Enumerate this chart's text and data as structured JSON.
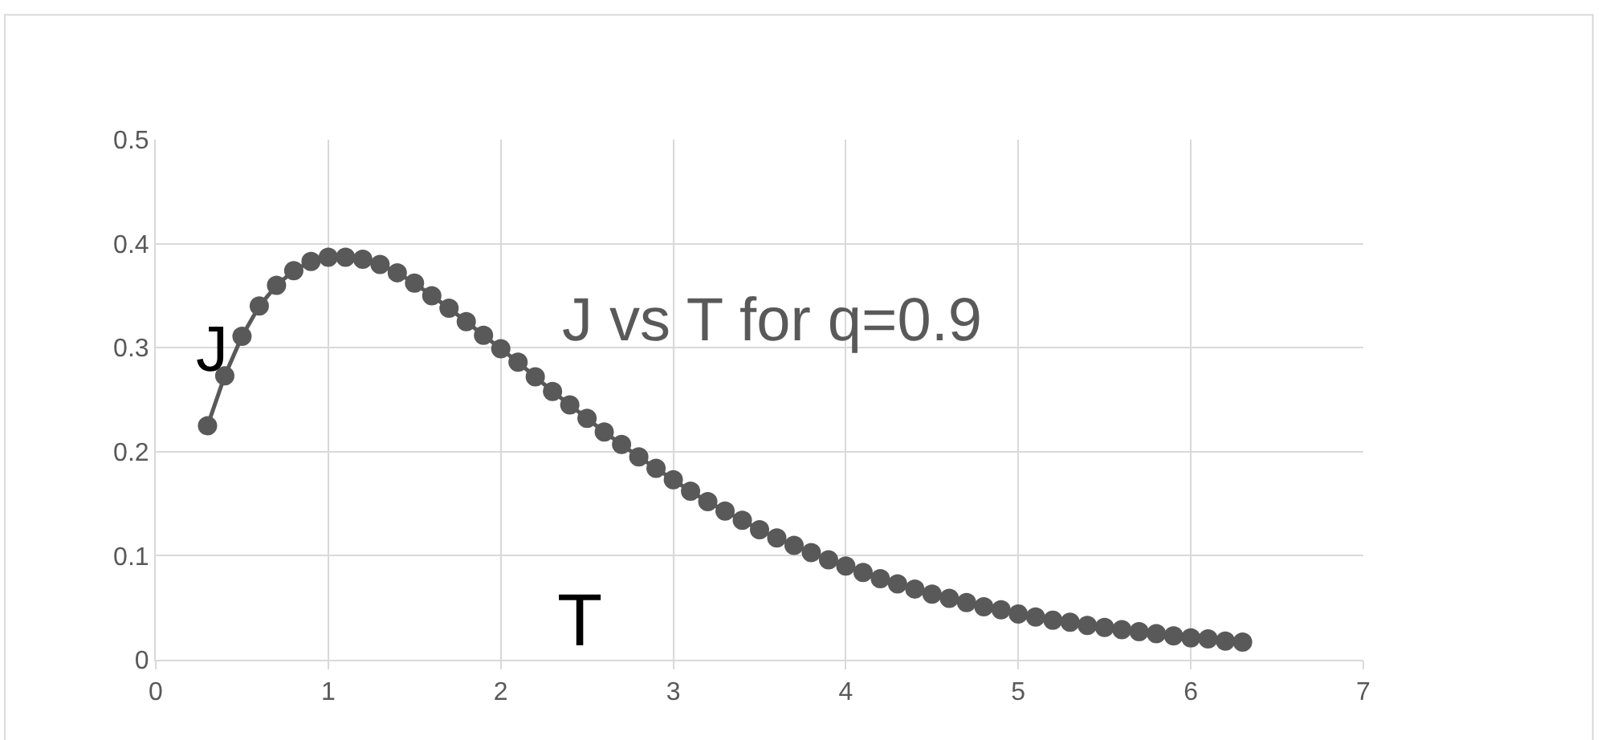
{
  "chart_data": {
    "type": "line",
    "title": "J vs T for q=0.9",
    "xlabel": "T",
    "ylabel": "J",
    "x": [
      0.3,
      0.4,
      0.5,
      0.6,
      0.7,
      0.8,
      0.9,
      1.0,
      1.1,
      1.2,
      1.3,
      1.4,
      1.5,
      1.6,
      1.7,
      1.8,
      1.9,
      2.0,
      2.1,
      2.2,
      2.3,
      2.4,
      2.5,
      2.6,
      2.7,
      2.8,
      2.9,
      3.0,
      3.1,
      3.2,
      3.3,
      3.4,
      3.5,
      3.6,
      3.7,
      3.8,
      3.9,
      4.0,
      4.1,
      4.2,
      4.3,
      4.4,
      4.5,
      4.6,
      4.7,
      4.8,
      4.9,
      5.0,
      5.1,
      5.2,
      5.3,
      5.4,
      5.5,
      5.6,
      5.7,
      5.8,
      5.9,
      6.0,
      6.1,
      6.2,
      6.3
    ],
    "series": [
      {
        "color": "#595959",
        "values": [
          0.225,
          0.273,
          0.311,
          0.34,
          0.36,
          0.374,
          0.383,
          0.387,
          0.387,
          0.385,
          0.38,
          0.372,
          0.362,
          0.35,
          0.338,
          0.325,
          0.312,
          0.299,
          0.286,
          0.272,
          0.258,
          0.245,
          0.232,
          0.219,
          0.207,
          0.195,
          0.184,
          0.173,
          0.162,
          0.152,
          0.143,
          0.134,
          0.125,
          0.117,
          0.11,
          0.103,
          0.096,
          0.09,
          0.084,
          0.078,
          0.073,
          0.068,
          0.063,
          0.059,
          0.055,
          0.051,
          0.048,
          0.044,
          0.041,
          0.038,
          0.036,
          0.033,
          0.031,
          0.029,
          0.027,
          0.025,
          0.023,
          0.021,
          0.02,
          0.018,
          0.017
        ]
      }
    ],
    "xlim": [
      0,
      7
    ],
    "xticks": [
      0,
      1,
      2,
      3,
      4,
      5,
      6,
      7
    ],
    "ylim": [
      0,
      0.5
    ],
    "yticks": [
      0,
      0.1,
      0.2,
      0.3,
      0.4,
      0.5
    ],
    "grid": true,
    "legend": false,
    "marker": "circle",
    "line_style": "solid"
  }
}
